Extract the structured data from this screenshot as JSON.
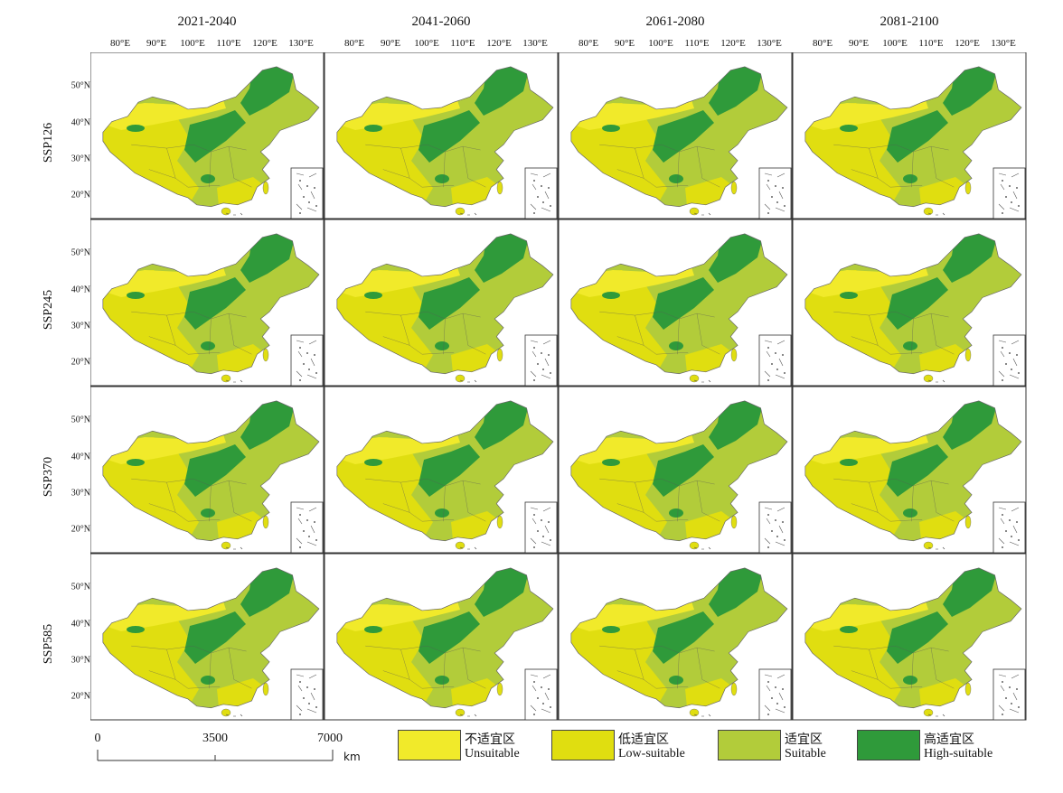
{
  "columns": [
    "2021-2040",
    "2041-2060",
    "2061-2080",
    "2081-2100"
  ],
  "rows": [
    "SSP126",
    "SSP245",
    "SSP370",
    "SSP585"
  ],
  "longitude_ticks": [
    "80°E",
    "90°E",
    "100°E",
    "110°E",
    "120°E",
    "130°E"
  ],
  "latitude_ticks": [
    "50°N",
    "40°N",
    "30°N",
    "20°N"
  ],
  "scale_bar": {
    "labels": [
      "0",
      "3500",
      "7000"
    ],
    "unit": "km"
  },
  "legend": [
    {
      "cn": "不适宜区",
      "en": "Unsuitable",
      "color": "#f1ea2a"
    },
    {
      "cn": "低适宜区",
      "en": "Low-suitable",
      "color": "#e0de10"
    },
    {
      "cn": "适宜区",
      "en": "Suitable",
      "color": "#b2cc3a"
    },
    {
      "cn": "高适宜区",
      "en": "High-suitable",
      "color": "#2f9a3a"
    }
  ]
}
